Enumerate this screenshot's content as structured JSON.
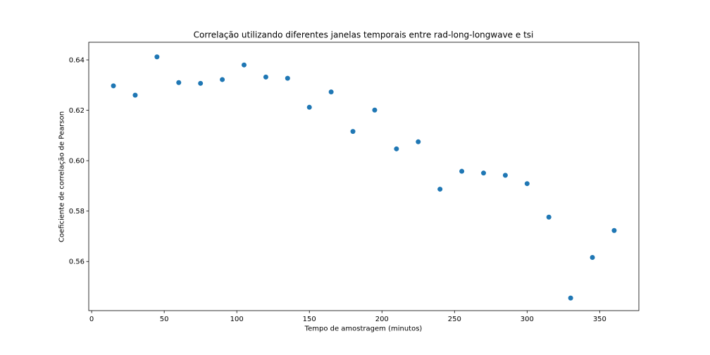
{
  "chart_data": {
    "type": "scatter",
    "title": "Correlação utilizando diferentes janelas temporais entre rad-long-longwave e tsi",
    "xlabel": "Tempo de amostragem (minutos)",
    "ylabel": "Coeficiente de correlação de Pearson",
    "xlim": [
      -2,
      377
    ],
    "ylim": [
      0.5405,
      0.647
    ],
    "x_ticks": [
      0,
      50,
      100,
      150,
      200,
      250,
      300,
      350
    ],
    "y_ticks": [
      0.56,
      0.58,
      0.6,
      0.62,
      0.64
    ],
    "x_tick_labels": [
      "0",
      "50",
      "100",
      "150",
      "200",
      "250",
      "300",
      "350"
    ],
    "y_tick_labels": [
      "0.56",
      "0.58",
      "0.60",
      "0.62",
      "0.64"
    ],
    "grid": false,
    "marker_color": "#1f77b4",
    "series": [
      {
        "x": [
          15,
          30,
          45,
          60,
          75,
          90,
          105,
          120,
          135,
          150,
          165,
          180,
          195,
          210,
          225,
          240,
          255,
          270,
          285,
          300,
          315,
          330,
          345,
          360
        ],
        "y": [
          0.6297,
          0.626,
          0.6412,
          0.631,
          0.6307,
          0.6322,
          0.638,
          0.6332,
          0.6327,
          0.6212,
          0.6273,
          0.6116,
          0.6201,
          0.6047,
          0.6075,
          0.5887,
          0.5958,
          0.5951,
          0.5942,
          0.5909,
          0.5776,
          0.5455,
          0.5616,
          0.5723
        ]
      }
    ]
  }
}
